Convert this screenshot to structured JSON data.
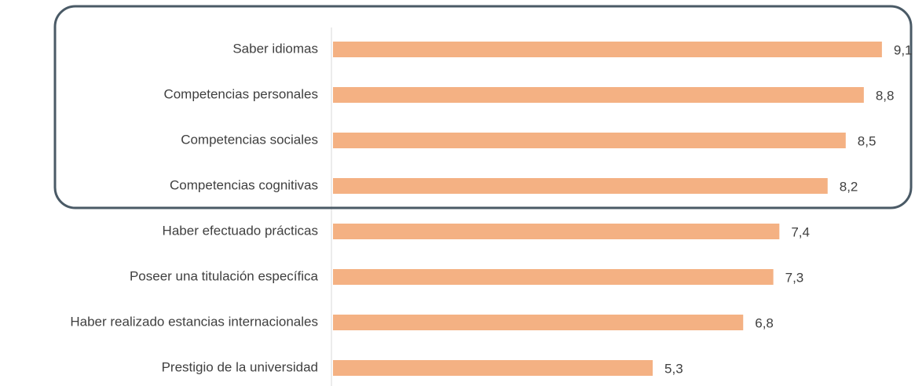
{
  "chart_data": {
    "type": "bar",
    "orientation": "horizontal",
    "categories": [
      "Saber idiomas",
      "Competencias personales",
      "Competencias sociales",
      "Competencias cognitivas",
      "Haber efectuado prácticas",
      "Poseer una titulación específica",
      "Haber realizado estancias internacionales",
      "Prestigio de la universidad"
    ],
    "values": [
      9.1,
      8.8,
      8.5,
      8.2,
      7.4,
      7.3,
      6.8,
      5.3
    ],
    "value_labels": [
      "9,1",
      "8,8",
      "8,5",
      "8,2",
      "7,4",
      "7,3",
      "6,8",
      "5,3"
    ],
    "color": "#f4b183"
  }
}
